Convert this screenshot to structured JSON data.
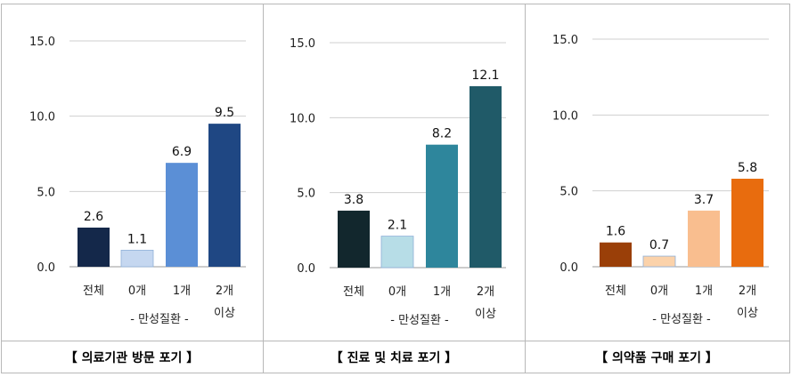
{
  "chart_data": [
    {
      "type": "bar",
      "title": "【 의료기관 방문 포기 】",
      "categories": [
        "전체",
        "0개",
        "1개",
        "2개 이상"
      ],
      "group_label": "- 만성질환 -",
      "values": [
        2.6,
        1.1,
        6.9,
        9.5
      ],
      "ylim": [
        0,
        15
      ],
      "yticks": [
        "0.0",
        "5.0",
        "10.0",
        "15.0"
      ],
      "colors": [
        "#14284a",
        "#c5d7f0",
        "#5b8fd6",
        "#1f4783"
      ],
      "grid": true
    },
    {
      "type": "bar",
      "title": "【 진료 및 치료 포기 】",
      "categories": [
        "전체",
        "0개",
        "1개",
        "2개 이상"
      ],
      "group_label": "- 만성질환 -",
      "values": [
        3.8,
        2.1,
        8.2,
        12.1
      ],
      "ylim": [
        0,
        15
      ],
      "yticks": [
        "0.0",
        "5.0",
        "10.0",
        "15.0"
      ],
      "colors": [
        "#12272d",
        "#b7dde7",
        "#2e869c",
        "#205a68"
      ],
      "grid": true
    },
    {
      "type": "bar",
      "title": "【 의약품 구매 포기 】",
      "categories": [
        "전체",
        "0개",
        "1개",
        "2개 이상"
      ],
      "group_label": "- 만성질환 -",
      "values": [
        1.6,
        0.7,
        3.7,
        5.8
      ],
      "ylim": [
        0,
        15
      ],
      "yticks": [
        "0.0",
        "5.0",
        "10.0",
        "15.0"
      ],
      "colors": [
        "#9a3f08",
        "#fbd2aa",
        "#f9be8f",
        "#e86c0e"
      ],
      "grid": true
    }
  ]
}
